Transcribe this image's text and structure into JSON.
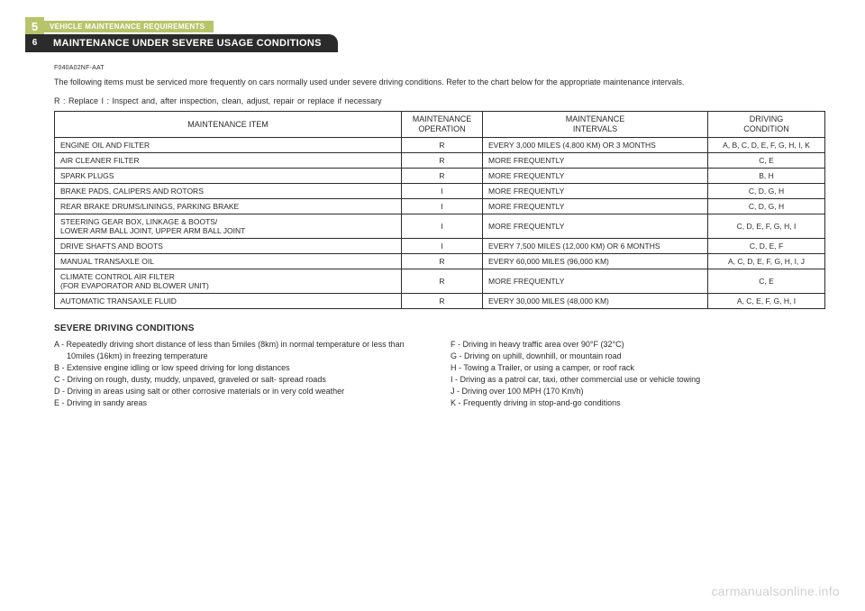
{
  "header": {
    "chapter_number": "5",
    "chapter_title": "VEHICLE MAINTENANCE REQUIREMENTS",
    "page_number": "6",
    "section_title": "MAINTENANCE UNDER SEVERE USAGE CONDITIONS"
  },
  "doc_code": "F040A02NF-AAT",
  "intro_text": "The following items must be serviced more frequently on cars normally used under severe driving conditions. Refer to the chart below for the appropriate maintenance intervals.",
  "legend": "R : Replace     I : Inspect and, after inspection, clean, adjust, repair or replace if necessary",
  "table": {
    "columns": {
      "item": "MAINTENANCE ITEM",
      "operation": "MAINTENANCE\nOPERATION",
      "intervals": "MAINTENANCE\nINTERVALS",
      "condition": "DRIVING\nCONDITION"
    },
    "rows": [
      {
        "item": "ENGINE OIL AND FILTER",
        "op": "R",
        "interval": "EVERY 3,000 MILES (4,800 KM) OR 3 MONTHS",
        "cond": "A, B, C, D, E, F, G, H, I, K"
      },
      {
        "item": "AIR CLEANER FILTER",
        "op": "R",
        "interval": "MORE FREQUENTLY",
        "cond": "C, E"
      },
      {
        "item": "SPARK PLUGS",
        "op": "R",
        "interval": "MORE FREQUENTLY",
        "cond": "B, H"
      },
      {
        "item": "BRAKE PADS, CALIPERS AND ROTORS",
        "op": "I",
        "interval": "MORE FREQUENTLY",
        "cond": "C, D, G, H"
      },
      {
        "item": "REAR BRAKE DRUMS/LININGS, PARKING BRAKE",
        "op": "I",
        "interval": "MORE FREQUENTLY",
        "cond": "C, D, G, H"
      },
      {
        "item": "STEERING GEAR BOX, LINKAGE & BOOTS/\nLOWER ARM BALL JOINT, UPPER ARM BALL JOINT",
        "op": "I",
        "interval": "MORE FREQUENTLY",
        "cond": "C, D, E, F, G, H, I"
      },
      {
        "item": "DRIVE SHAFTS AND BOOTS",
        "op": "I",
        "interval": "EVERY 7,500 MILES (12,000 KM) OR 6 MONTHS",
        "cond": "C, D, E, F"
      },
      {
        "item": "MANUAL TRANSAXLE OIL",
        "op": "R",
        "interval": "EVERY 60,000 MILES (96,000 KM)",
        "cond": "A, C, D, E, F, G, H, I, J"
      },
      {
        "item": "CLIMATE CONTROL AIR FILTER\n(FOR EVAPORATOR AND BLOWER UNIT)",
        "op": "R",
        "interval": "MORE FREQUENTLY",
        "cond": "C, E"
      },
      {
        "item": "AUTOMATIC TRANSAXLE FLUID",
        "op": "R",
        "interval": "EVERY 30,000 MILES (48,000 KM)",
        "cond": "A, C, E, F, G, H, I"
      }
    ],
    "col_widths": {
      "item": "auto",
      "op": "90px",
      "interval": "250px",
      "cond": "130px"
    },
    "border_color": "#2b2b2b",
    "font_size": 8.5
  },
  "sdc": {
    "title": "SEVERE DRIVING CONDITIONS",
    "left": [
      "A - Repeatedly driving short distance of less than 5miles (8km) in normal temperature or less than 10miles (16km) in freezing temperature",
      "B - Extensive engine idling or low speed driving for long distances",
      "C - Driving on rough, dusty, muddy, unpaved, graveled or salt- spread roads",
      "D - Driving in areas using salt or other corrosive materials or in very cold weather",
      "E - Driving in sandy areas"
    ],
    "right": [
      "F - Driving in heavy traffic area over 90°F (32°C)",
      "G - Driving on uphill, downhill, or mountain road",
      "H - Towing a Trailer, or using a camper, or roof rack",
      "I  - Driving as a patrol car, taxi, other commercial use or vehicle towing",
      "J - Driving over 100 MPH (170 Km/h)",
      "K - Frequently driving in stop-and-go conditions"
    ]
  },
  "watermark": "carmanualsonline.info",
  "colors": {
    "olive": "#b8c46a",
    "dark": "#2b2b2b",
    "text": "#2b2b2b",
    "watermark": "#d0d0d0",
    "background": "#ffffff"
  }
}
